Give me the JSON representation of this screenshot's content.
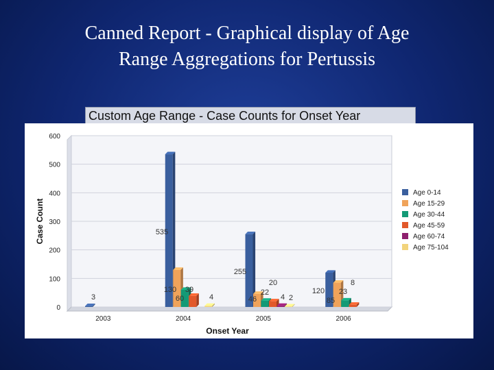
{
  "slide": {
    "title_line1": "Canned Report - Graphical display of Age",
    "title_line2": "Range Aggregations for Pertussis"
  },
  "chart_data": {
    "type": "bar",
    "title": "Custom Age Range - Case Counts for Onset Year",
    "xlabel": "Onset Year",
    "ylabel": "Case Count",
    "ylim": [
      0,
      600
    ],
    "yticks": [
      0,
      100,
      200,
      300,
      400,
      500,
      600
    ],
    "grid": true,
    "legend_position": "right",
    "categories": [
      "2003",
      "2004",
      "2005",
      "2006"
    ],
    "series": [
      {
        "name": "Age 0-14",
        "color": "#3a5f9e",
        "values": [
          3,
          535,
          255,
          120
        ]
      },
      {
        "name": "Age 15-29",
        "color": "#f0a35a",
        "values": [
          0,
          130,
          46,
          85
        ]
      },
      {
        "name": "Age 30-44",
        "color": "#139a76",
        "values": [
          0,
          60,
          22,
          23
        ]
      },
      {
        "name": "Age 45-59",
        "color": "#e2582a",
        "values": [
          0,
          39,
          20,
          8
        ]
      },
      {
        "name": "Age 60-74",
        "color": "#8e1f6e",
        "values": [
          0,
          0,
          4,
          0
        ]
      },
      {
        "name": "Age 75-104",
        "color": "#f2d47c",
        "values": [
          0,
          4,
          2,
          0
        ]
      }
    ]
  }
}
